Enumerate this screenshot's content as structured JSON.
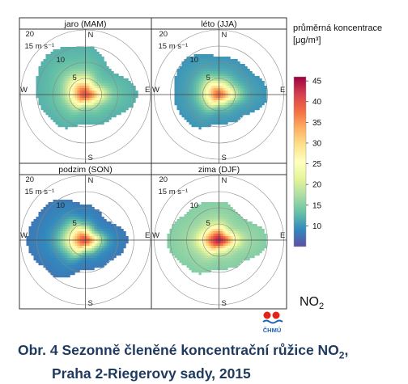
{
  "chart_data": {
    "type": "heatmap",
    "subtype": "polar pollution rose",
    "panels": [
      {
        "title": "jaro (MAM)",
        "ring_labels": [
          "5",
          "10",
          "15 m s⁻¹",
          "20"
        ],
        "directions": [
          "N",
          "E",
          "S",
          "W"
        ],
        "extent_by_direction_ms": {
          "N": 15,
          "NE": 11,
          "E": 16,
          "SE": 11,
          "S": 9,
          "SW": 13,
          "W": 15,
          "NW": 17
        },
        "peak_concentration": 40,
        "edge_concentration": 12
      },
      {
        "title": "léto (JJA)",
        "ring_labels": [
          "5",
          "10",
          "15 m s⁻¹",
          "20"
        ],
        "directions": [
          "N",
          "E",
          "S",
          "W"
        ],
        "extent_by_direction_ms": {
          "N": 12,
          "NE": 12,
          "E": 15,
          "SE": 10,
          "S": 9,
          "SW": 13,
          "W": 14,
          "NW": 15
        },
        "peak_concentration": 38,
        "edge_concentration": 10
      },
      {
        "title": "podzim (SON)",
        "ring_labels": [
          "5",
          "10",
          "15 m s⁻¹",
          "20"
        ],
        "directions": [
          "N",
          "E",
          "S",
          "W"
        ],
        "extent_by_direction_ms": {
          "N": 11,
          "NE": 9,
          "E": 13,
          "SE": 10,
          "S": 9,
          "SW": 15,
          "W": 18,
          "NW": 16
        },
        "peak_concentration": 40,
        "edge_concentration": 8
      },
      {
        "title": "zima (DJF)",
        "ring_labels": [
          "5",
          "10",
          "15 m s⁻¹",
          "20"
        ],
        "directions": [
          "N",
          "E",
          "S",
          "W"
        ],
        "extent_by_direction_ms": {
          "N": 12,
          "NE": 10,
          "E": 15,
          "SE": 10,
          "S": 9,
          "SW": 13,
          "W": 16,
          "NW": 13
        },
        "peak_concentration": 44,
        "edge_concentration": 15
      }
    ],
    "legend": {
      "title_line1": "průměrná koncentrace",
      "title_line2": "[μg/m³]",
      "ticks": [
        10,
        15,
        20,
        25,
        30,
        35,
        40,
        45
      ],
      "range": [
        5,
        46
      ],
      "colors": [
        "#5e4fa2",
        "#3288bd",
        "#66c2a5",
        "#abdda4",
        "#e6f598",
        "#ffffbf",
        "#fee08b",
        "#fdae61",
        "#f46d43",
        "#d53e4f",
        "#9e0142"
      ]
    },
    "pollutant_label": "NO",
    "pollutant_subscript": "2"
  },
  "logo": {
    "text": "ČHMÚ"
  },
  "caption": {
    "line1_main": "Obr. 4  Sezonně členěné koncentrační růžice NO",
    "line1_sub": "2",
    "line1_end": ",",
    "line2": "Praha 2-Riegerovy sady, 2015"
  }
}
